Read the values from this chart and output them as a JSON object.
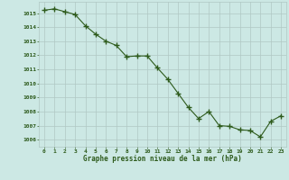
{
  "x": [
    0,
    1,
    2,
    3,
    4,
    5,
    6,
    7,
    8,
    9,
    10,
    11,
    12,
    13,
    14,
    15,
    16,
    17,
    18,
    19,
    20,
    21,
    22,
    23
  ],
  "y": [
    1015.2,
    1015.3,
    1015.1,
    1014.9,
    1014.1,
    1013.5,
    1013.0,
    1012.7,
    1011.9,
    1011.95,
    1011.95,
    1011.1,
    1010.3,
    1009.3,
    1008.3,
    1007.5,
    1008.0,
    1007.0,
    1006.95,
    1006.7,
    1006.65,
    1006.2,
    1007.3,
    1007.7
  ],
  "line_color": "#2d5a1b",
  "marker_color": "#2d5a1b",
  "bg_color": "#cce8e4",
  "grid_color": "#b0c8c4",
  "xlabel": "Graphe pression niveau de la mer (hPa)",
  "xlabel_color": "#2d5a1b",
  "tick_color": "#2d5a1b",
  "ylim": [
    1005.5,
    1015.8
  ],
  "yticks": [
    1006,
    1007,
    1008,
    1009,
    1010,
    1011,
    1012,
    1013,
    1014,
    1015
  ],
  "xlim": [
    -0.5,
    23.5
  ],
  "xticks": [
    0,
    1,
    2,
    3,
    4,
    5,
    6,
    7,
    8,
    9,
    10,
    11,
    12,
    13,
    14,
    15,
    16,
    17,
    18,
    19,
    20,
    21,
    22,
    23
  ]
}
